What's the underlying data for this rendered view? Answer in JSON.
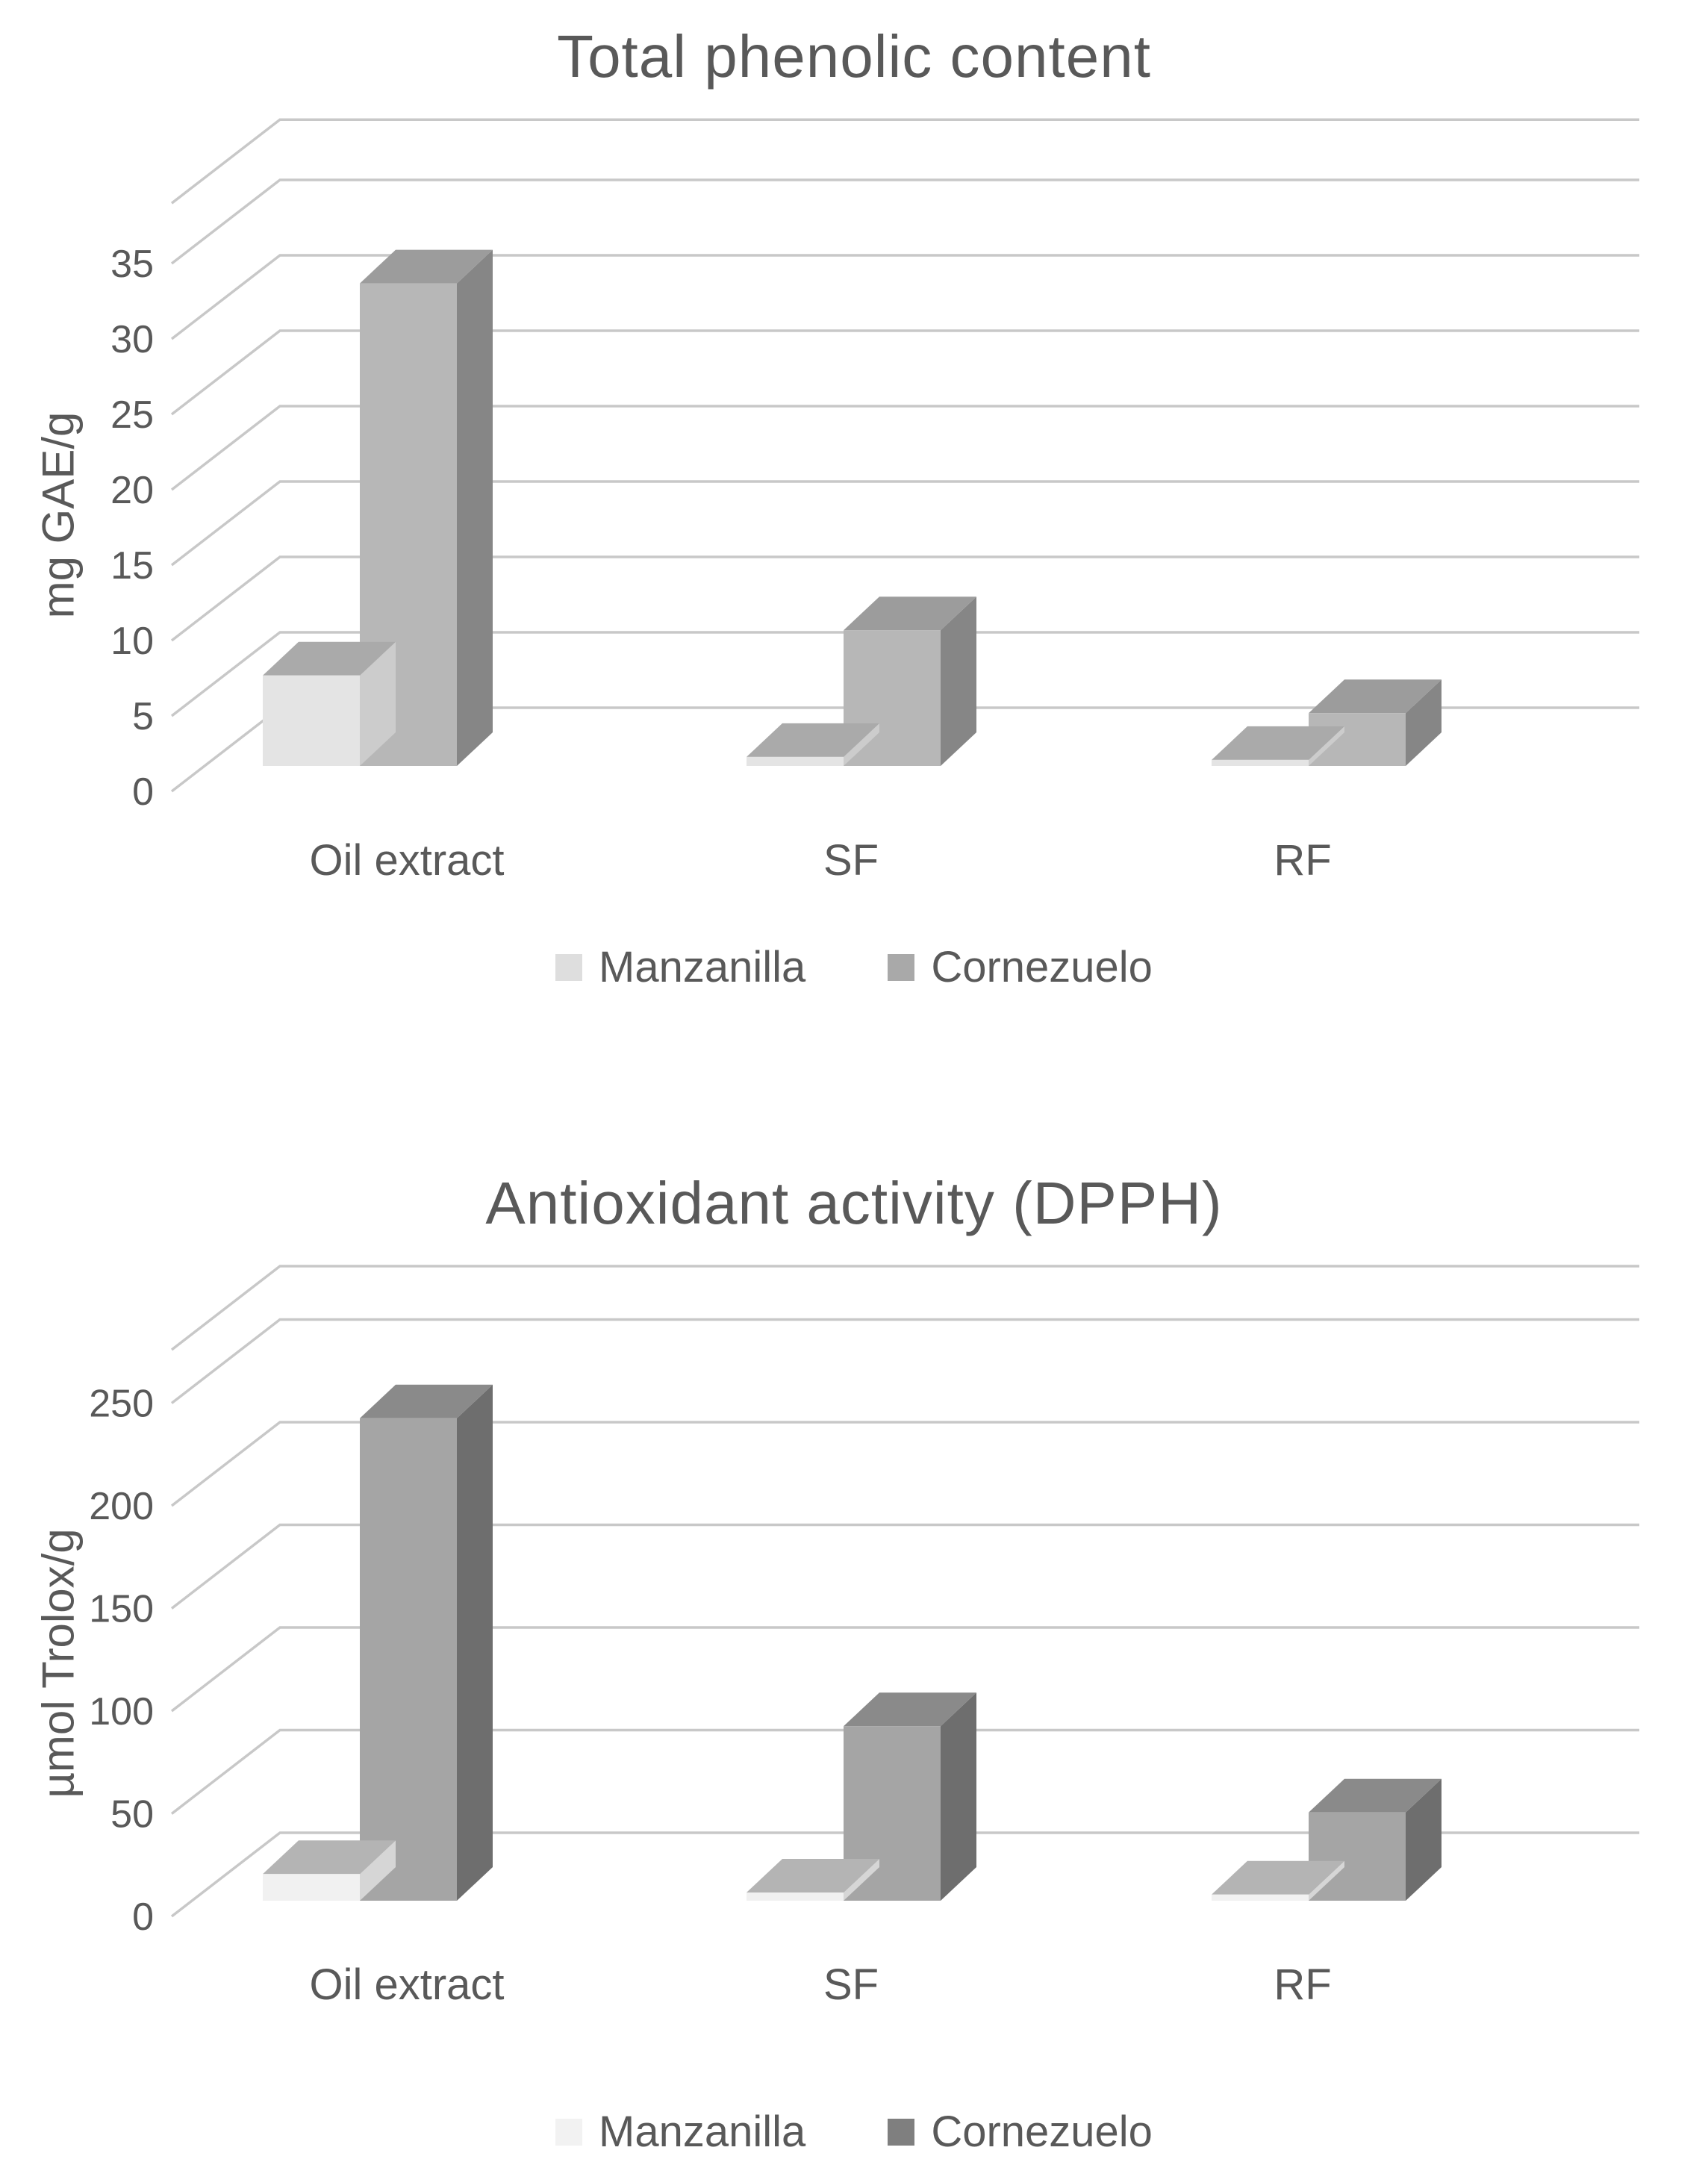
{
  "page_background": "#ffffff",
  "text_color": "#595959",
  "gridline_color": "#c8c8c8",
  "chart_data": [
    {
      "type": "bar",
      "projection": "3d",
      "title": "Total phenolic content",
      "xlabel": "",
      "ylabel": "mg GAE/g",
      "categories": [
        "Oil extract",
        "SF",
        "RF"
      ],
      "series": [
        {
          "name": "Manzanilla",
          "values": [
            6,
            0.6,
            0.4
          ],
          "color_front": "#e4e4e4",
          "color_top": "#aaaaaa",
          "color_side": "#cccccc",
          "legend_swatch": "#dedede"
        },
        {
          "name": "Cornezuelo",
          "values": [
            32,
            9,
            3.5
          ],
          "color_front": "#b7b7b7",
          "color_top": "#9c9c9c",
          "color_side": "#868686",
          "legend_swatch": "#a9a9a9"
        }
      ],
      "ylim": [
        0,
        35
      ],
      "yticks": [
        0,
        5,
        10,
        15,
        20,
        25,
        30,
        35
      ],
      "ytick_step": 5,
      "grid": true,
      "legend_position": "bottom"
    },
    {
      "type": "bar",
      "projection": "3d",
      "title": "Antioxidant activity (DPPH)",
      "xlabel": "",
      "ylabel": "µmol Trolox/g",
      "categories": [
        "Oil extract",
        "SF",
        "RF"
      ],
      "series": [
        {
          "name": "Manzanilla",
          "values": [
            13,
            4,
            3
          ],
          "color_front": "#f1f1f1",
          "color_top": "#b4b4b4",
          "color_side": "#d6d6d6",
          "legend_swatch": "#f2f2f2"
        },
        {
          "name": "Cornezuelo",
          "values": [
            235,
            85,
            43
          ],
          "color_front": "#a5a5a5",
          "color_top": "#8a8a8a",
          "color_side": "#6e6e6e",
          "legend_swatch": "#7f7f7f"
        }
      ],
      "ylim": [
        0,
        250
      ],
      "yticks": [
        0,
        50,
        100,
        150,
        200,
        250
      ],
      "ytick_step": 50,
      "grid": true,
      "legend_position": "bottom"
    }
  ]
}
